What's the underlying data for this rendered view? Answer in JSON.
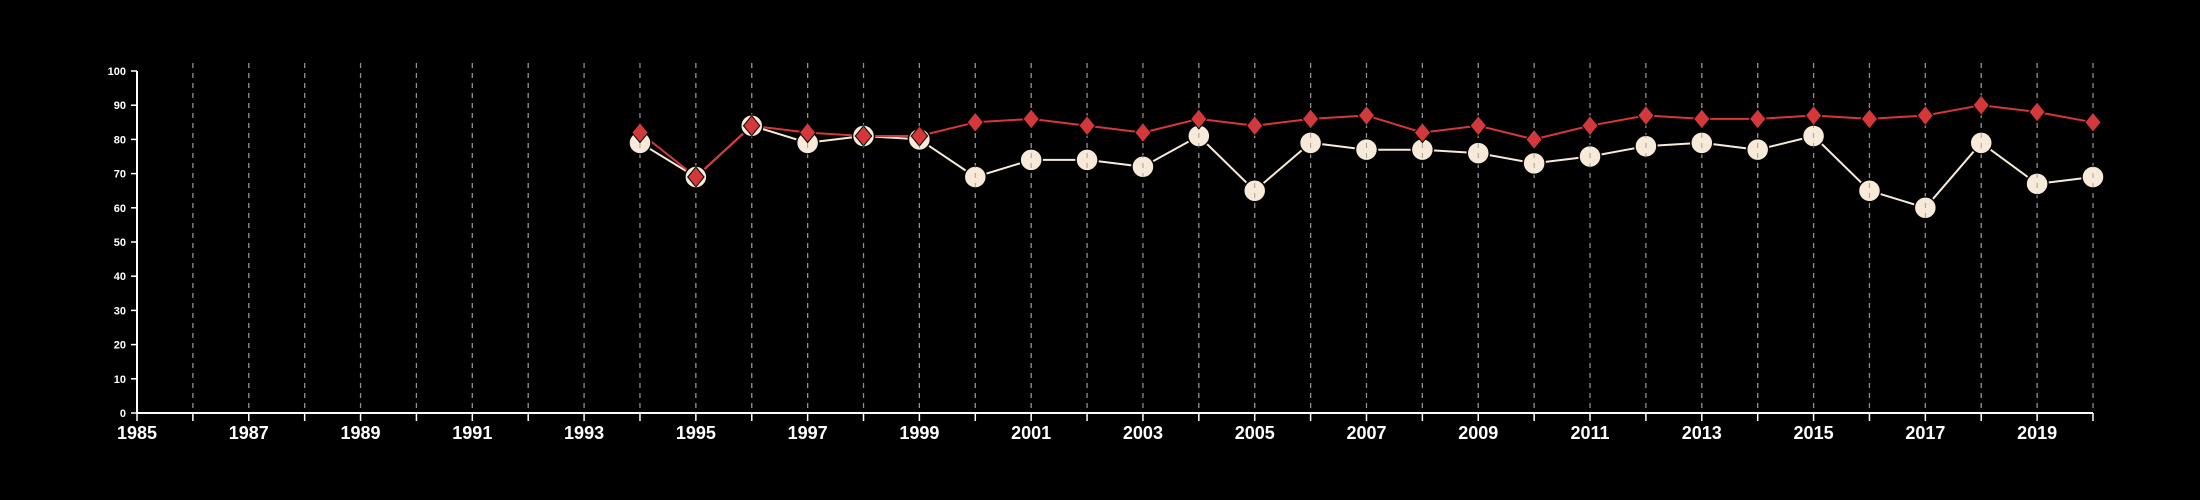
{
  "chart_data": {
    "type": "line",
    "title": "",
    "xlabel": "",
    "ylabel": "",
    "xlim": [
      1985,
      2020
    ],
    "ylim": [
      0,
      100
    ],
    "x_ticks": [
      1985,
      1987,
      1989,
      1991,
      1993,
      1995,
      1997,
      1999,
      2001,
      2003,
      2005,
      2007,
      2009,
      2011,
      2013,
      2015,
      2017,
      2019
    ],
    "y_ticks": [
      0,
      10,
      20,
      30,
      40,
      50,
      60,
      70,
      80,
      90,
      100
    ],
    "grid": "vertical dashed lines at each year",
    "legend": "none",
    "background_color": "#000000",
    "axis_color": "#ffffff",
    "grid_color": "#bfbfbf",
    "series": [
      {
        "marker": "diamond",
        "color": "#d6373a",
        "x": [
          1994,
          1995,
          1996,
          1997,
          1998,
          1999,
          2000,
          2001,
          2002,
          2003,
          2004,
          2005,
          2006,
          2007,
          2008,
          2009,
          2010,
          2011,
          2012,
          2013,
          2014,
          2015,
          2016,
          2017,
          2018,
          2019,
          2020
        ],
        "values": [
          82,
          69,
          84,
          82,
          81,
          81,
          85,
          86,
          84,
          82,
          86,
          84,
          86,
          87,
          82,
          84,
          80,
          84,
          87,
          86,
          86,
          87,
          86,
          87,
          90,
          88,
          85
        ]
      },
      {
        "marker": "circle",
        "color": "#f7ead8",
        "x": [
          1994,
          1995,
          1996,
          1997,
          1998,
          1999,
          2000,
          2001,
          2002,
          2003,
          2004,
          2005,
          2006,
          2007,
          2008,
          2009,
          2010,
          2011,
          2012,
          2013,
          2014,
          2015,
          2016,
          2017,
          2018,
          2019,
          2020
        ],
        "values": [
          79,
          69,
          84,
          79,
          81,
          80,
          69,
          74,
          74,
          72,
          81,
          65,
          79,
          77,
          77,
          76,
          73,
          75,
          78,
          79,
          77,
          81,
          65,
          60,
          79,
          67,
          69
        ]
      }
    ]
  }
}
